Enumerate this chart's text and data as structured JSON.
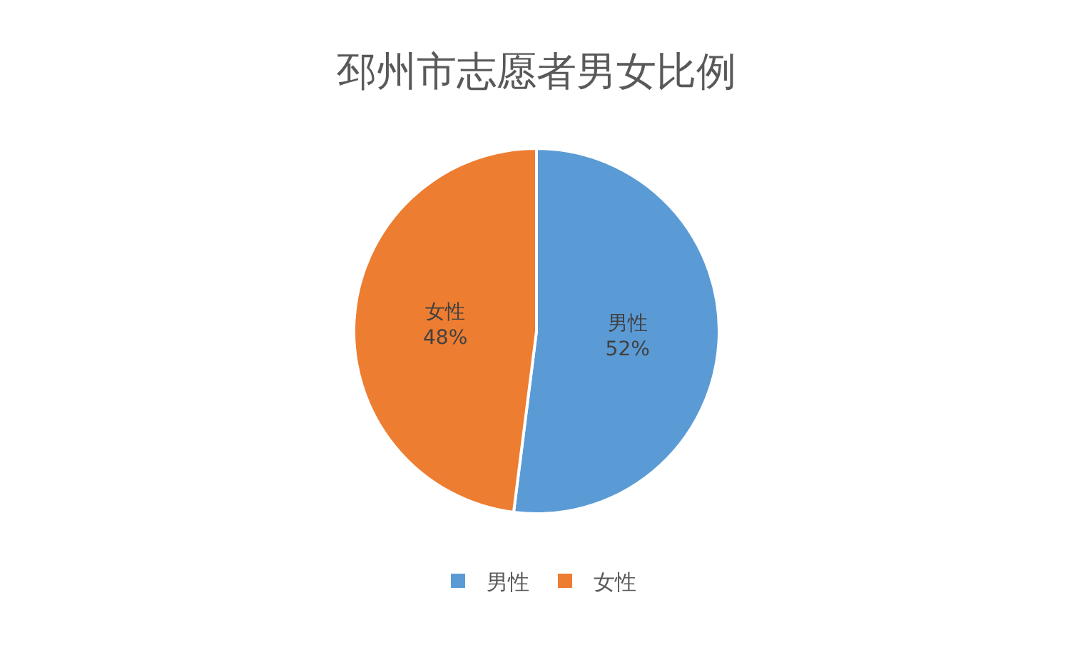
{
  "chart_data": {
    "type": "pie",
    "title": "邳州市志愿者男女比例",
    "categories": [
      "男性",
      "女性"
    ],
    "values": [
      52,
      48
    ],
    "colors": [
      "#5b9bd5",
      "#ed7d31"
    ],
    "value_labels": [
      "52%",
      "48%"
    ],
    "legend": "bottom"
  }
}
